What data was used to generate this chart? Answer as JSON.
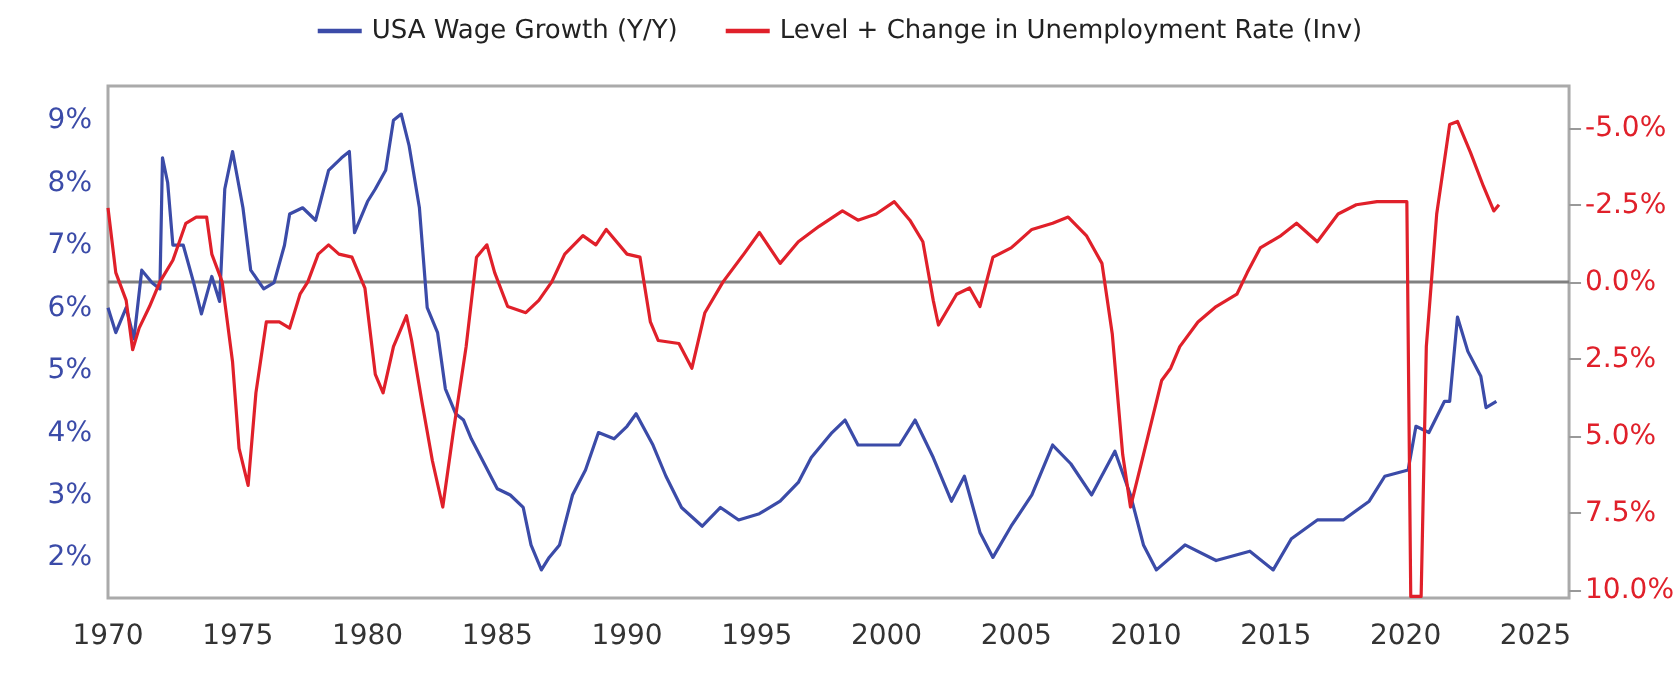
{
  "chart_data": {
    "type": "line",
    "legend": "top",
    "grid": false,
    "marker": "none",
    "line_style": "solid",
    "xlim": [
      1970,
      2026.3
    ],
    "xticks": [
      1970,
      1975,
      1980,
      1985,
      1990,
      1995,
      2000,
      2005,
      2010,
      2015,
      2020,
      2025
    ],
    "ylim": [
      1.35,
      9.55
    ],
    "yticks": [
      {
        "value": 2,
        "label": "2%"
      },
      {
        "value": 3,
        "label": "3%"
      },
      {
        "value": 4,
        "label": "4%"
      },
      {
        "value": 5,
        "label": "5%"
      },
      {
        "value": 6,
        "label": "6%"
      },
      {
        "value": 7,
        "label": "7%"
      },
      {
        "value": 8,
        "label": "8%"
      },
      {
        "value": 9,
        "label": "9%"
      }
    ],
    "y2lim": [
      10.25,
      -6.35
    ],
    "y2ticks": [
      {
        "value": -5,
        "label": "-5.0%"
      },
      {
        "value": -2.5,
        "label": "-2.5%"
      },
      {
        "value": 0,
        "label": "0.0%"
      },
      {
        "value": 2.5,
        "label": "2.5%"
      },
      {
        "value": 5,
        "label": "5.0%"
      },
      {
        "value": 7.5,
        "label": "7.5%"
      },
      {
        "value": 10,
        "label": "10.0%"
      }
    ],
    "ref_lines": [
      {
        "axis": "y2",
        "value": 0,
        "color": "#808080"
      }
    ],
    "series": [
      {
        "name": "USA Wage Growth (Y/Y)",
        "color": "#3b4ba8",
        "x": [
          1970.0,
          1970.3,
          1970.7,
          1971.0,
          1971.3,
          1971.7,
          1972.0,
          1972.1,
          1972.3,
          1972.5,
          1972.9,
          1973.3,
          1973.6,
          1974.0,
          1974.3,
          1974.5,
          1974.8,
          1975.2,
          1975.5,
          1976.0,
          1976.4,
          1976.8,
          1977.0,
          1977.5,
          1978.0,
          1978.5,
          1979.0,
          1979.3,
          1979.5,
          1980.0,
          1980.3,
          1980.7,
          1981.0,
          1981.3,
          1981.6,
          1982.0,
          1982.3,
          1982.7,
          1983.0,
          1983.4,
          1983.7,
          1984.0,
          1984.5,
          1985.0,
          1985.5,
          1986.0,
          1986.3,
          1986.7,
          1987.0,
          1987.4,
          1987.9,
          1988.4,
          1988.9,
          1989.5,
          1990.0,
          1990.35,
          1991.0,
          1991.5,
          1992.1,
          1992.9,
          1993.6,
          1994.3,
          1995.1,
          1995.9,
          1996.6,
          1997.1,
          1997.9,
          1998.4,
          1998.9,
          1999.7,
          2000.5,
          2001.1,
          2001.8,
          2002.5,
          2003.0,
          2003.6,
          2004.1,
          2004.8,
          2005.6,
          2006.4,
          2007.1,
          2007.9,
          2008.8,
          2009.4,
          2009.9,
          2010.4,
          2011.5,
          2012.7,
          2014.0,
          2014.9,
          2015.6,
          2016.6,
          2017.6,
          2018.6,
          2019.2,
          2020.1,
          2020.4,
          2020.9,
          2021.5,
          2021.7,
          2022.0,
          2022.4,
          2022.9,
          2023.1,
          2023.5
        ],
        "values": [
          6.0,
          5.6,
          6.0,
          5.5,
          6.6,
          6.4,
          6.3,
          8.4,
          8.0,
          7.0,
          7.0,
          6.4,
          5.9,
          6.5,
          6.1,
          7.9,
          8.5,
          7.6,
          6.6,
          6.3,
          6.4,
          7.0,
          7.5,
          7.6,
          7.4,
          8.2,
          8.4,
          8.5,
          7.2,
          7.7,
          7.9,
          8.2,
          9.0,
          9.1,
          8.6,
          7.6,
          6.0,
          5.6,
          4.7,
          4.3,
          4.2,
          3.9,
          3.5,
          3.1,
          3.0,
          2.8,
          2.2,
          1.8,
          2.0,
          2.2,
          3.0,
          3.4,
          4.0,
          3.9,
          4.1,
          4.3,
          3.8,
          3.3,
          2.8,
          2.5,
          2.8,
          2.6,
          2.7,
          2.9,
          3.2,
          3.6,
          4.0,
          4.2,
          3.8,
          3.8,
          3.8,
          4.2,
          3.6,
          2.9,
          3.3,
          2.4,
          2.0,
          2.5,
          3.0,
          3.8,
          3.5,
          3.0,
          3.7,
          3.0,
          2.2,
          1.8,
          2.2,
          1.95,
          2.1,
          1.8,
          2.3,
          2.6,
          2.6,
          2.9,
          3.3,
          3.4,
          4.1,
          4.0,
          4.5,
          4.5,
          5.85,
          5.3,
          4.9,
          4.4,
          4.5
        ]
      },
      {
        "name": "Level + Change in Unemployment Rate (Inv)",
        "color": "#e0202a",
        "axis": "y2",
        "x": [
          1970.0,
          1970.3,
          1970.7,
          1970.95,
          1971.2,
          1971.6,
          1972.0,
          1972.5,
          1973.0,
          1973.4,
          1973.8,
          1974.0,
          1974.4,
          1974.8,
          1975.05,
          1975.4,
          1975.7,
          1976.1,
          1976.6,
          1977.0,
          1977.4,
          1977.7,
          1978.1,
          1978.5,
          1978.9,
          1979.4,
          1979.9,
          1980.3,
          1980.6,
          1981.0,
          1981.5,
          1981.7,
          1982.1,
          1982.5,
          1982.9,
          1983.3,
          1983.8,
          1984.2,
          1984.6,
          1984.9,
          1985.4,
          1986.1,
          1986.6,
          1987.1,
          1987.6,
          1988.3,
          1988.8,
          1989.2,
          1990.0,
          1990.5,
          1990.9,
          1991.2,
          1992.0,
          1992.5,
          1993.0,
          1993.7,
          1994.5,
          1995.1,
          1995.9,
          1996.6,
          1997.4,
          1998.3,
          1998.9,
          1999.6,
          2000.3,
          2000.9,
          2001.4,
          2001.8,
          2002.0,
          2002.7,
          2003.2,
          2003.6,
          2004.1,
          2004.8,
          2005.6,
          2006.4,
          2007.0,
          2007.7,
          2008.3,
          2008.7,
          2009.1,
          2009.4,
          2009.9,
          2010.6,
          2010.95,
          2011.3,
          2012.0,
          2012.7,
          2013.5,
          2013.9,
          2014.4,
          2015.2,
          2015.8,
          2016.6,
          2017.4,
          2018.1,
          2018.9,
          2019.4,
          2020.05,
          2020.2,
          2020.6,
          2020.8,
          2021.2,
          2021.7,
          2022.0,
          2022.5,
          2023.0,
          2023.4,
          2023.6
        ],
        "values": [
          -2.4,
          -0.3,
          0.6,
          2.2,
          1.5,
          0.8,
          0.0,
          -0.7,
          -1.9,
          -2.1,
          -2.1,
          -0.9,
          0.0,
          2.6,
          5.4,
          6.6,
          3.6,
          1.3,
          1.3,
          1.5,
          0.4,
          0.0,
          -0.9,
          -1.2,
          -0.9,
          -0.8,
          0.2,
          3.0,
          3.6,
          2.1,
          1.1,
          1.9,
          3.9,
          5.8,
          7.3,
          4.9,
          2.1,
          -0.8,
          -1.2,
          -0.3,
          0.8,
          1.0,
          0.6,
          0.0,
          -0.9,
          -1.5,
          -1.2,
          -1.7,
          -0.9,
          -0.8,
          1.3,
          1.9,
          2.0,
          2.8,
          1.0,
          0.0,
          -0.9,
          -1.6,
          -0.6,
          -1.3,
          -1.8,
          -2.3,
          -2.0,
          -2.2,
          -2.6,
          -2.0,
          -1.3,
          0.6,
          1.4,
          0.4,
          0.2,
          0.8,
          -0.8,
          -1.1,
          -1.7,
          -1.9,
          -2.1,
          -1.5,
          -0.6,
          1.7,
          5.6,
          7.3,
          5.6,
          3.2,
          2.8,
          2.1,
          1.3,
          0.8,
          0.4,
          -0.3,
          -1.1,
          -1.5,
          -1.9,
          -1.3,
          -2.2,
          -2.5,
          -2.6,
          -2.6,
          -2.6,
          10.2,
          10.2,
          2.1,
          -2.2,
          -5.1,
          -5.2,
          -4.2,
          -3.1,
          -2.3,
          -2.5
        ]
      }
    ]
  }
}
